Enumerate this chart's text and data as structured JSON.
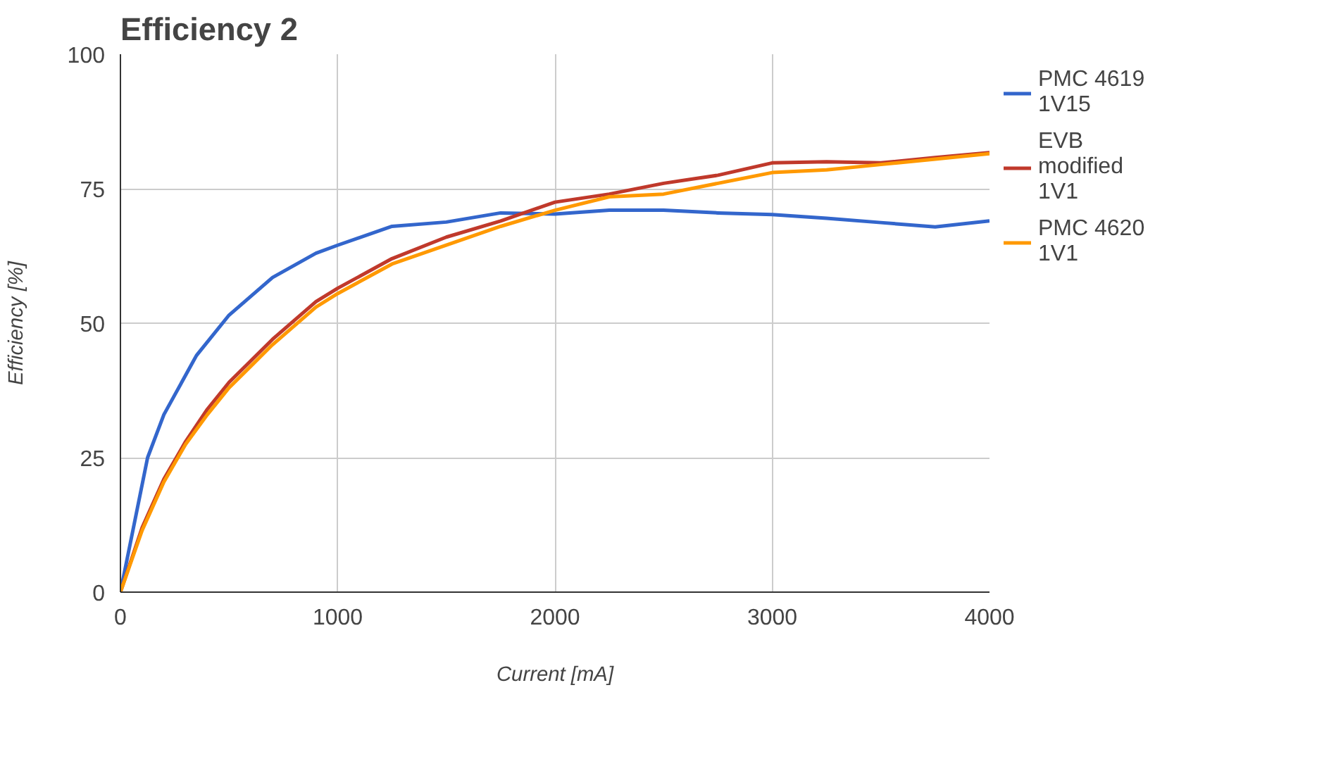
{
  "chart_data": {
    "type": "line",
    "title": "Efficiency 2",
    "xlabel": "Current [mA]",
    "ylabel": "Efficiency [%]",
    "xlim": [
      0,
      4000
    ],
    "ylim": [
      0,
      100
    ],
    "xticks": [
      0,
      1000,
      2000,
      3000,
      4000
    ],
    "yticks": [
      0,
      25,
      50,
      75,
      100
    ],
    "grid": true,
    "legend": "right",
    "line_style": "solid",
    "series": [
      {
        "name": "PMC 4619 1V15",
        "color": "#3366cc",
        "x": [
          0,
          125,
          200,
          350,
          500,
          600,
          700,
          900,
          1000,
          1250,
          1500,
          1750,
          2000,
          2250,
          2500,
          2750,
          3000,
          3250,
          3500,
          3750,
          4000
        ],
        "values": [
          0,
          25,
          33,
          44,
          51.5,
          55,
          58.5,
          63,
          64.5,
          68,
          68.8,
          70.5,
          70.3,
          71,
          71,
          70.5,
          70.2,
          69.5,
          68.7,
          67.9,
          69
        ]
      },
      {
        "name": "EVB modified 1V1",
        "color": "#c0392b",
        "x": [
          0,
          100,
          200,
          300,
          400,
          500,
          600,
          700,
          900,
          1000,
          1250,
          1500,
          1750,
          2000,
          2250,
          2500,
          2750,
          3000,
          3250,
          3500,
          3750,
          4000
        ],
        "values": [
          0,
          12,
          21,
          28,
          34,
          39,
          43,
          47,
          54,
          56.5,
          62,
          66,
          69,
          72.5,
          74,
          76,
          77.5,
          79.8,
          80,
          79.8,
          80.8,
          81.7
        ]
      },
      {
        "name": "PMC 4620 1V1",
        "color": "#ff9900",
        "x": [
          0,
          100,
          200,
          300,
          400,
          500,
          600,
          700,
          900,
          1000,
          1250,
          1500,
          1750,
          2000,
          2250,
          2500,
          2750,
          3000,
          3250,
          3500,
          3750,
          4000
        ],
        "values": [
          0,
          11.5,
          20.5,
          27.5,
          33,
          38,
          42,
          46,
          53,
          55.5,
          61,
          64.5,
          68,
          71,
          73.5,
          74,
          76,
          78,
          78.5,
          79.5,
          80.5,
          81.5
        ]
      }
    ]
  }
}
